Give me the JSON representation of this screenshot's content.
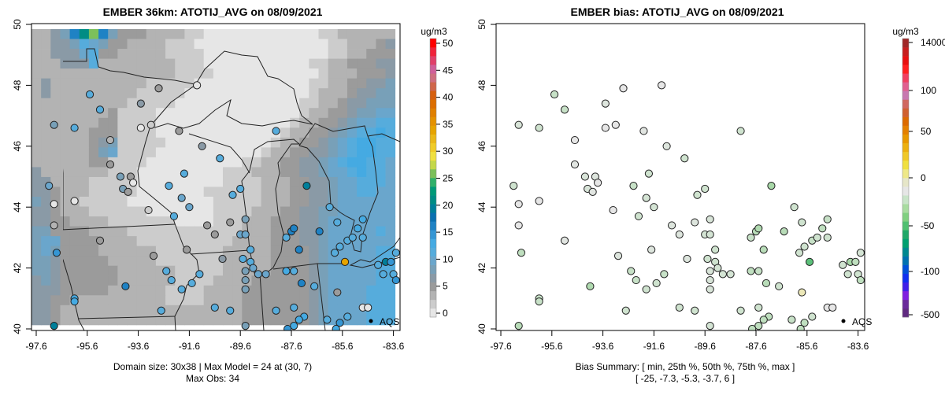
{
  "chart_data": [
    {
      "type": "heatmap",
      "title": "EMBER 36km: ATOTIJ_AVG on 08/09/2021",
      "xlabel": "",
      "ylabel": "",
      "xlim": [
        -97.8,
        -83.35
      ],
      "ylim": [
        39.95,
        50.0
      ],
      "x_ticks": [
        "-97.6",
        "-95.6",
        "-93.6",
        "-91.6",
        "-89.6",
        "-87.6",
        "-85.6",
        "-83.6"
      ],
      "y_ticks": [
        "40",
        "42",
        "44",
        "46",
        "48",
        "50"
      ],
      "colorbar": {
        "units": "ug/m3",
        "range": [
          0,
          50
        ],
        "ticks": [
          "0",
          "5",
          "10",
          "15",
          "20",
          "25",
          "30",
          "35",
          "40",
          "45",
          "50"
        ],
        "colors": [
          "#e6e6e6",
          "#cccccc",
          "#b3b3b3",
          "#9b9b9b",
          "#8a9aa6",
          "#78a0b8",
          "#6aa6cc",
          "#56acdc",
          "#45aae2",
          "#3596d4",
          "#1f82c4",
          "#0a70b0",
          "#007f9a",
          "#008c84",
          "#009a78",
          "#30b06a",
          "#7cc05b",
          "#c4d84a",
          "#f0e040",
          "#f0cc28",
          "#eab818",
          "#e6a400",
          "#e49200",
          "#e08000",
          "#dc6e00",
          "#d66010",
          "#d0664a",
          "#cf6f80",
          "#d0609a",
          "#e0406a",
          "#f0233a",
          "#ff0000"
        ]
      },
      "grid_level_values": {
        "0": 1,
        "1": 3,
        "2": 4.5,
        "3": 6,
        "4": 7.5,
        "5": 9,
        "6": 10.5,
        "7": 12,
        "8": 14,
        "9": 17,
        "g": 21,
        "h": 26
      },
      "grid_rows": [
        "22459gh9533322221100000000000011222222",
        "22445765332222111000000000000001122234",
        "22444673322222111100000000000001122333",
        "22244472222222211100000000000112233344",
        "22222222222222211110000000000012223334",
        "24222222222211111000000000000112233445",
        "24222222222111110000000000000122234455",
        "22222222221111100000000000001122344555",
        "22222222311110000000000000001223345566",
        "22222223311110000000000000012233456677",
        "22222233311110000000000000122334567787",
        "22222234511111000000000001223345678877",
        "22222235611110000000000012233445678877",
        "22222233111100000000001122334456788776",
        "42222222111000000000111222334456678776",
        "44222211111000000000111122233445667776",
        "44322211111000000011111122233445667766",
        "54322111110000000001111122233445666666",
        "44322211111100000001111222334455666666",
        "44332222111111100001112223334456666666",
        "55333322221111111111112223334456666676",
        "56633332222111111111122223334456666666",
        "56533332222221111111222223333456666677",
        "55433333222221111111222223333456666677",
        "55433333322222211111222223333456666677",
        "45433333322222211112222333333456666677",
        "44433333222222111122223333333456666777",
        "44332222222222111122223333333456666777",
        "44322222222222222222223333333456666777",
        "44322222222222222222223333333456666777"
      ],
      "stations_note": "[lon, lat, obs ug/m3, bias ug/m3]",
      "stations": [
        [
          -92.8,
          47.9,
          5,
          0
        ],
        [
          -91.3,
          48.0,
          1,
          0
        ],
        [
          -95.5,
          47.7,
          11,
          -6
        ],
        [
          -95.1,
          47.2,
          11,
          -6
        ],
        [
          -93.5,
          47.4,
          7,
          -2
        ],
        [
          -96.9,
          46.7,
          9,
          -3
        ],
        [
          -96.1,
          46.6,
          11,
          -5
        ],
        [
          -93.5,
          46.6,
          1,
          0
        ],
        [
          -93.1,
          46.7,
          2,
          0
        ],
        [
          -92.0,
          46.5,
          6,
          -1
        ],
        [
          -94.7,
          46.2,
          4,
          0
        ],
        [
          -91.1,
          46.0,
          7,
          -2
        ],
        [
          -88.2,
          46.5,
          11,
          -5
        ],
        [
          -90.4,
          45.6,
          11,
          -5
        ],
        [
          -94.7,
          45.4,
          5,
          -1
        ],
        [
          -91.8,
          45.1,
          11,
          -5
        ],
        [
          -94.3,
          45.0,
          8,
          -3
        ],
        [
          -93.9,
          45.0,
          6,
          -2
        ],
        [
          -93.8,
          44.8,
          1,
          0
        ],
        [
          -94.2,
          44.6,
          9,
          -3
        ],
        [
          -94.0,
          44.5,
          6,
          -1
        ],
        [
          -97.1,
          44.7,
          10,
          -5
        ],
        [
          -92.4,
          44.7,
          12,
          -6
        ],
        [
          -96.1,
          44.2,
          1,
          0
        ],
        [
          -96.9,
          44.1,
          1,
          0
        ],
        [
          -91.9,
          44.3,
          10,
          -4
        ],
        [
          -91.6,
          44.0,
          10,
          -4
        ],
        [
          -93.2,
          43.9,
          3,
          0
        ],
        [
          -92.2,
          43.7,
          11,
          -5
        ],
        [
          -96.9,
          43.4,
          4,
          0
        ],
        [
          -95.1,
          42.9,
          5,
          -1
        ],
        [
          -90.9,
          43.4,
          6,
          -2
        ],
        [
          -90.0,
          43.5,
          6,
          -2
        ],
        [
          -90.6,
          43.1,
          6,
          -2
        ],
        [
          -89.6,
          44.6,
          11,
          -5
        ],
        [
          -89.9,
          44.4,
          11,
          -5
        ],
        [
          -89.4,
          43.6,
          8,
          -3
        ],
        [
          -89.6,
          43.1,
          10,
          -4
        ],
        [
          -89.4,
          43.1,
          10,
          -4
        ],
        [
          -89.2,
          42.6,
          11,
          -5
        ],
        [
          -91.7,
          42.6,
          6,
          -2
        ],
        [
          -90.3,
          42.3,
          7,
          -2
        ],
        [
          -89.5,
          42.3,
          11,
          -5
        ],
        [
          -89.2,
          42.2,
          11,
          -5
        ],
        [
          -89.1,
          42.0,
          10,
          -4
        ],
        [
          -89.4,
          41.9,
          9,
          -3
        ],
        [
          -88.9,
          41.8,
          10,
          -4
        ],
        [
          -88.6,
          41.8,
          10,
          -4
        ],
        [
          -89.4,
          41.6,
          9,
          -3
        ],
        [
          -89.4,
          41.3,
          9,
          -3
        ],
        [
          -93.0,
          42.4,
          6,
          -2
        ],
        [
          -96.8,
          42.5,
          15,
          -7
        ],
        [
          -92.5,
          41.9,
          12,
          -6
        ],
        [
          -91.2,
          41.8,
          12,
          -6
        ],
        [
          -92.3,
          41.6,
          12,
          -6
        ],
        [
          -91.5,
          41.5,
          11,
          -5
        ],
        [
          -91.9,
          41.3,
          11,
          -5
        ],
        [
          -94.1,
          41.4,
          17,
          -9
        ],
        [
          -96.1,
          41.0,
          13,
          -6
        ],
        [
          -96.1,
          40.9,
          13,
          -6
        ],
        [
          -92.7,
          40.6,
          11,
          -5
        ],
        [
          -90.6,
          40.7,
          11,
          -5
        ],
        [
          -90.0,
          40.6,
          11,
          -5
        ],
        [
          -89.4,
          40.1,
          9,
          -4
        ],
        [
          -96.9,
          40.1,
          20,
          -8
        ],
        [
          -87.0,
          44.7,
          20,
          -10
        ],
        [
          -87.8,
          43.0,
          12,
          -6
        ],
        [
          -87.6,
          43.2,
          16,
          -8
        ],
        [
          -87.5,
          43.3,
          17,
          -9
        ],
        [
          -86.5,
          43.2,
          16,
          -8
        ],
        [
          -87.3,
          42.6,
          17,
          -8
        ],
        [
          -87.8,
          41.9,
          14,
          -7
        ],
        [
          -87.5,
          41.9,
          12,
          -6
        ],
        [
          -87.2,
          41.5,
          17,
          -8
        ],
        [
          -86.7,
          41.4,
          11,
          -5
        ],
        [
          -88.2,
          40.6,
          11,
          -5
        ],
        [
          -87.5,
          40.7,
          11,
          -5
        ],
        [
          -87.1,
          40.4,
          14,
          -7
        ],
        [
          -87.3,
          40.3,
          14,
          -7
        ],
        [
          -87.5,
          40.1,
          14,
          -7
        ],
        [
          -87.75,
          40.0,
          15,
          -7
        ],
        [
          -86.1,
          44.0,
          11,
          -5
        ],
        [
          -85.8,
          43.5,
          11,
          -5
        ],
        [
          -84.8,
          43.6,
          13,
          -6
        ],
        [
          -85.0,
          43.3,
          14,
          -7
        ],
        [
          -85.4,
          42.9,
          12,
          -6
        ],
        [
          -85.7,
          42.7,
          11,
          -5
        ],
        [
          -85.2,
          43.0,
          11,
          -5
        ],
        [
          -84.8,
          43.0,
          11,
          -5
        ],
        [
          -85.9,
          42.5,
          11,
          -5
        ],
        [
          -85.5,
          42.2,
          34,
          -25
        ],
        [
          -83.5,
          42.5,
          11,
          -4
        ],
        [
          -83.9,
          42.2,
          20,
          -10
        ],
        [
          -83.7,
          42.2,
          15,
          -7
        ],
        [
          -84.2,
          42.1,
          11,
          -5
        ],
        [
          -83.6,
          41.8,
          11,
          -5
        ],
        [
          -84.0,
          41.8,
          11,
          -5
        ],
        [
          -83.5,
          41.6,
          15,
          -7
        ],
        [
          -85.8,
          41.2,
          6,
          6
        ],
        [
          -84.8,
          40.7,
          1,
          0
        ],
        [
          -84.6,
          40.7,
          1,
          0
        ],
        [
          -85.4,
          40.4,
          11,
          -5
        ],
        [
          -85.7,
          40.2,
          15,
          -7
        ],
        [
          -86.2,
          40.3,
          12,
          -6
        ],
        [
          -85.85,
          40.0,
          14,
          -7
        ]
      ],
      "legend": {
        "label": "AQS",
        "placement": "bottom-right"
      },
      "footer": [
        "Domain size: 30x38 | Max Model = 24 at (30, 7)",
        "Max Obs: 34"
      ]
    },
    {
      "type": "scatter",
      "title": "EMBER bias: ATOTIJ_AVG on 08/09/2021",
      "xlim": [
        -97.8,
        -83.35
      ],
      "ylim": [
        39.95,
        50.0
      ],
      "x_ticks": [
        "-97.6",
        "-95.6",
        "-93.6",
        "-91.6",
        "-89.6",
        "-87.6",
        "-85.6",
        "-83.6"
      ],
      "y_ticks": [
        "40",
        "42",
        "44",
        "46",
        "48",
        "50"
      ],
      "colorbar": {
        "units": "ug/m3",
        "tick_labels": [
          "-500",
          "-100",
          "-50",
          "0",
          "50",
          "100",
          "14000"
        ],
        "colors": [
          "#602a80",
          "#6a2a9a",
          "#8020e0",
          "#4020e8",
          "#1030f0",
          "#0050d8",
          "#0070b0",
          "#008890",
          "#00a070",
          "#20a868",
          "#50c070",
          "#80d080",
          "#a8dca0",
          "#c8e4c8",
          "#e6e6e6",
          "#e6e6c8",
          "#eee888",
          "#f0e040",
          "#f0c828",
          "#ecb010",
          "#e89800",
          "#e48000",
          "#dc6a00",
          "#d06030",
          "#d06860",
          "#c878b0",
          "#e06090",
          "#f04060",
          "#ff2020",
          "#e81010",
          "#c81e1e",
          "#a02828"
        ]
      },
      "bias_point_colors": {
        "-25": "#5cc07a",
        "-10": "#a8d8a8",
        "-5": "#cfe3cf",
        "0": "#e6e6e6",
        "6": "#ece8b8"
      },
      "legend": {
        "label": "AQS",
        "placement": "bottom-right"
      },
      "footer": [
        "Bias Summary: [ min, 25th %, 50th %, 75th %, max ]",
        "[ -25,  -7.3,  -5.3,  -3.7,  6 ]"
      ],
      "summary": {
        "min": -25,
        "p25": -7.3,
        "p50": -5.3,
        "p75": -3.7,
        "max": 6
      }
    }
  ]
}
